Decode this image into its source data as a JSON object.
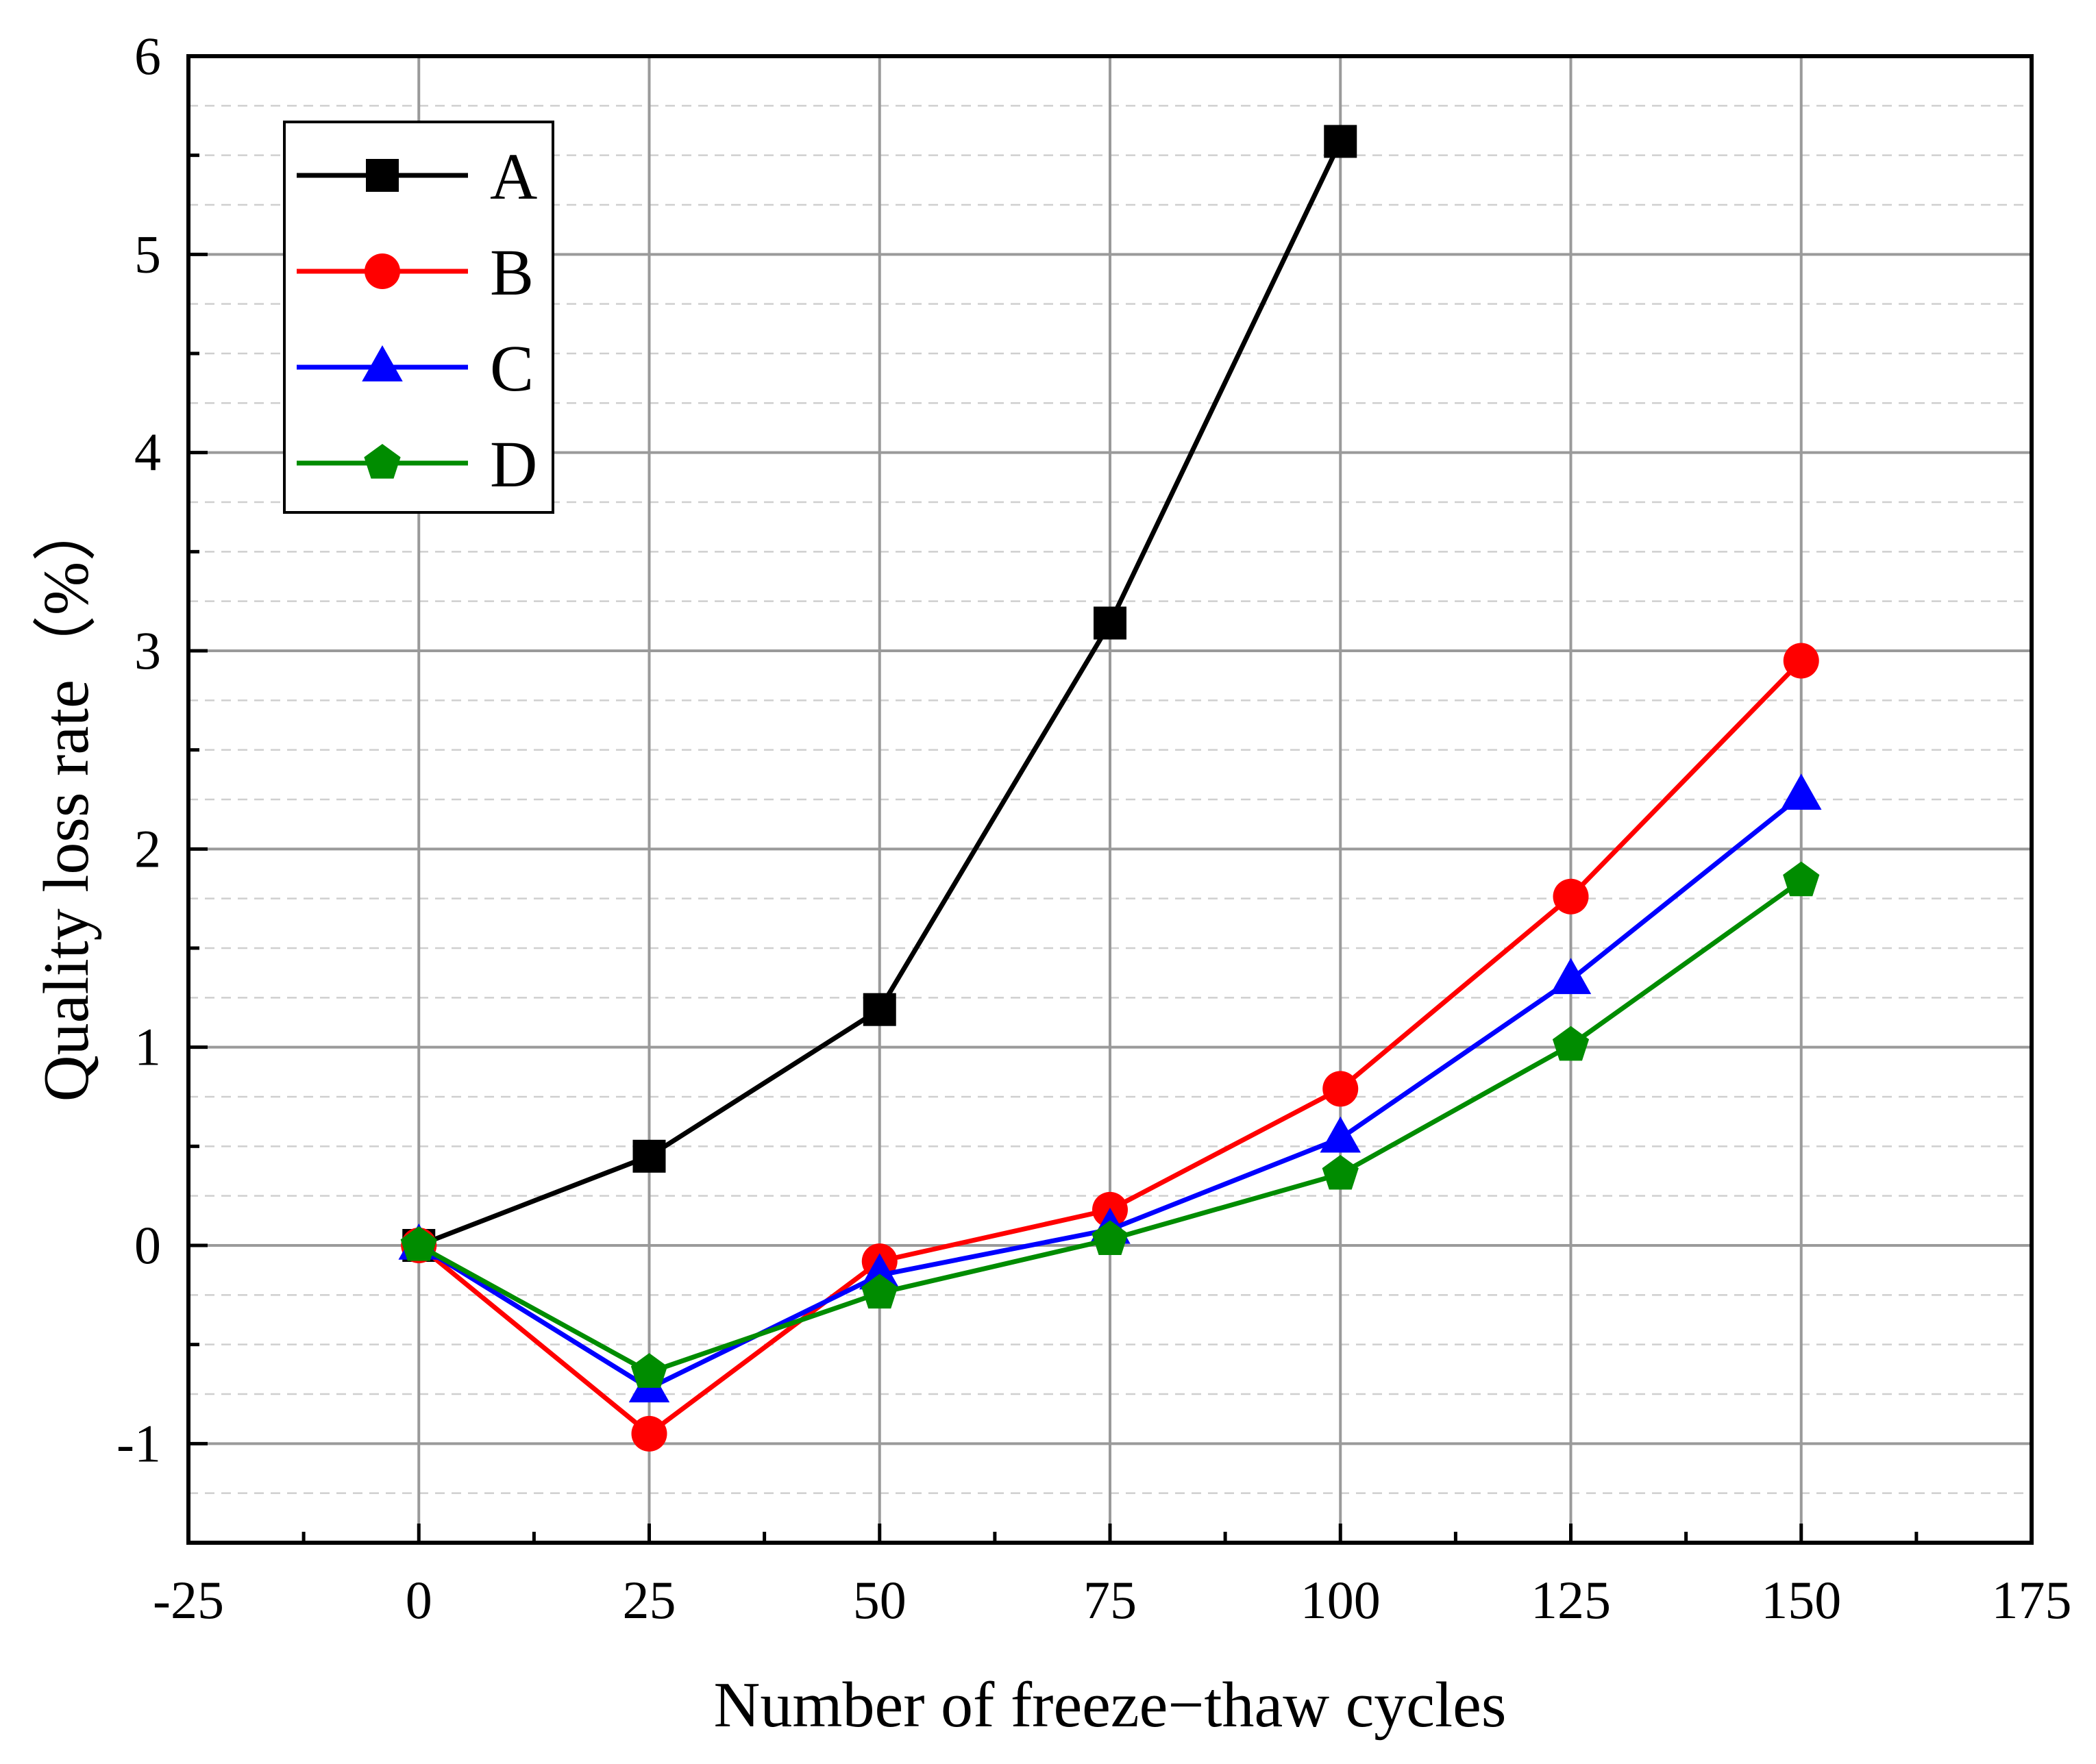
{
  "chart_data": {
    "type": "line",
    "xlabel": "Number of freeze−thaw cycles",
    "ylabel": "Quality loss rate（%）",
    "xlim": [
      -25,
      175
    ],
    "ylim": [
      -1.5,
      6
    ],
    "xticks": [
      -25,
      0,
      25,
      50,
      75,
      100,
      125,
      150,
      175
    ],
    "yticks": [
      -1,
      0,
      1,
      2,
      3,
      4,
      5,
      6
    ],
    "grid": true,
    "legend_position": "top-left",
    "series": [
      {
        "name": "A",
        "color": "#000000",
        "marker": "square",
        "x": [
          0,
          25,
          50,
          75,
          100
        ],
        "y": [
          0,
          0.45,
          1.19,
          3.14,
          5.57
        ]
      },
      {
        "name": "B",
        "color": "#ff0000",
        "marker": "circle",
        "x": [
          0,
          25,
          50,
          75,
          100,
          125,
          150
        ],
        "y": [
          0,
          -0.95,
          -0.08,
          0.18,
          0.79,
          1.76,
          2.95
        ]
      },
      {
        "name": "C",
        "color": "#0000ff",
        "marker": "triangle",
        "x": [
          0,
          25,
          50,
          75,
          100,
          125,
          150
        ],
        "y": [
          0,
          -0.72,
          -0.15,
          0.08,
          0.54,
          1.34,
          2.27
        ]
      },
      {
        "name": "D",
        "color": "#008c00",
        "marker": "pentagon",
        "x": [
          0,
          25,
          50,
          75,
          100,
          125,
          150
        ],
        "y": [
          0,
          -0.64,
          -0.24,
          0.03,
          0.36,
          1.01,
          1.84
        ]
      }
    ]
  }
}
